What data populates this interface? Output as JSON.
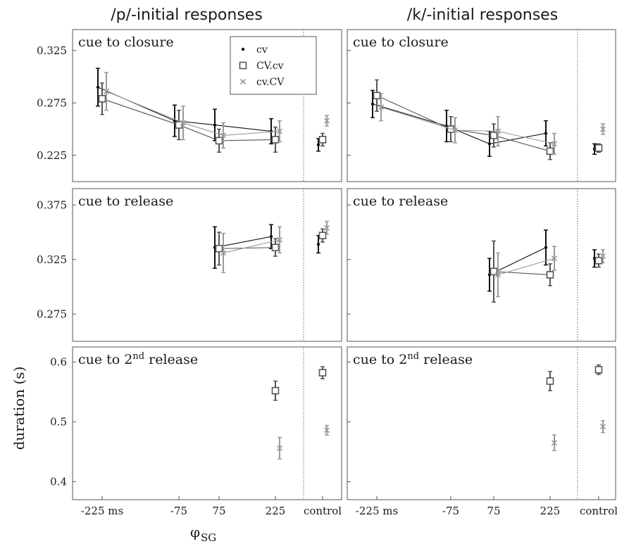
{
  "chart_data": {
    "type": "line",
    "ylabel": "duration (s)",
    "xlabel": "φ",
    "xlabel_sub": "SG",
    "x_categories": [
      "-225 ms",
      "-75",
      "75",
      "225",
      "control"
    ],
    "control_tick_labels": [
      "control",
      "control"
    ],
    "columns": [
      "/p/-initial responses",
      "/k/-initial responses"
    ],
    "legend": {
      "placement": "top-center of top-left panel",
      "entries": [
        {
          "name": "cv",
          "marker": "dot",
          "color": "#111111"
        },
        {
          "name": "CV.cv",
          "marker": "square",
          "color": "#555555"
        },
        {
          "name": "cv.CV",
          "marker": "x",
          "color": "#9a9a9a"
        }
      ]
    },
    "rows": [
      {
        "label": "cue to closure",
        "ylim": [
          0.2,
          0.345
        ],
        "yticks": [
          "0.225",
          "0.275",
          "0.325"
        ],
        "ytick_values": [
          0.225,
          0.275,
          0.325
        ],
        "panels": [
          {
            "series": [
              {
                "name": "cv",
                "x": [
                  0,
                  1,
                  2,
                  3,
                  4
                ],
                "y": [
                  0.29,
                  0.258,
                  0.254,
                  0.248,
                  0.235
                ],
                "err": [
                  0.018,
                  0.015,
                  0.015,
                  0.012,
                  0.006
                ]
              },
              {
                "name": "CV.cv",
                "x": [
                  0,
                  1,
                  2,
                  3,
                  4
                ],
                "y": [
                  0.279,
                  0.254,
                  0.239,
                  0.24,
                  0.24
                ],
                "err": [
                  0.015,
                  0.014,
                  0.011,
                  0.012,
                  0.006
                ]
              },
              {
                "name": "cv.CV",
                "x": [
                  0,
                  1,
                  2,
                  3,
                  4
                ],
                "y": [
                  0.286,
                  0.256,
                  0.244,
                  0.248,
                  0.258
                ],
                "err": [
                  0.018,
                  0.016,
                  0.012,
                  0.01,
                  0.005
                ]
              }
            ]
          },
          {
            "series": [
              {
                "name": "cv",
                "x": [
                  0,
                  1,
                  2,
                  3,
                  4
                ],
                "y": [
                  0.274,
                  0.253,
                  0.236,
                  0.246,
                  0.231
                ],
                "err": [
                  0.013,
                  0.015,
                  0.012,
                  0.012,
                  0.005
                ]
              },
              {
                "name": "CV.cv",
                "x": [
                  0,
                  1,
                  2,
                  3,
                  4
                ],
                "y": [
                  0.282,
                  0.25,
                  0.244,
                  0.229,
                  0.232
                ],
                "err": [
                  0.015,
                  0.012,
                  0.011,
                  0.008,
                  0.004
                ]
              },
              {
                "name": "cv.CV",
                "x": [
                  0,
                  1,
                  2,
                  3,
                  4
                ],
                "y": [
                  0.271,
                  0.249,
                  0.248,
                  0.236,
                  0.25
                ],
                "err": [
                  0.013,
                  0.012,
                  0.014,
                  0.01,
                  0.005
                ]
              }
            ]
          }
        ]
      },
      {
        "label": "cue to release",
        "ylim": [
          0.25,
          0.39
        ],
        "yticks": [
          "0.275",
          "0.325",
          "0.375"
        ],
        "ytick_values": [
          0.275,
          0.325,
          0.375
        ],
        "panels": [
          {
            "series": [
              {
                "name": "cv",
                "x": [
                  2,
                  3,
                  4
                ],
                "y": [
                  0.336,
                  0.346,
                  0.339
                ],
                "err": [
                  0.019,
                  0.011,
                  0.008
                ]
              },
              {
                "name": "CV.cv",
                "x": [
                  2,
                  3,
                  4
                ],
                "y": [
                  0.335,
                  0.336,
                  0.347
                ],
                "err": [
                  0.015,
                  0.008,
                  0.006
                ]
              },
              {
                "name": "cv.CV",
                "x": [
                  2,
                  3,
                  4
                ],
                "y": [
                  0.331,
                  0.343,
                  0.354
                ],
                "err": [
                  0.018,
                  0.012,
                  0.006
                ]
              }
            ]
          },
          {
            "series": [
              {
                "name": "cv",
                "x": [
                  2,
                  3,
                  4
                ],
                "y": [
                  0.311,
                  0.336,
                  0.326
                ],
                "err": [
                  0.015,
                  0.016,
                  0.008
                ]
              },
              {
                "name": "CV.cv",
                "x": [
                  2,
                  3,
                  4
                ],
                "y": [
                  0.314,
                  0.311,
                  0.324
                ],
                "err": [
                  0.028,
                  0.01,
                  0.006
                ]
              },
              {
                "name": "cv.CV",
                "x": [
                  2,
                  3,
                  4
                ],
                "y": [
                  0.311,
                  0.326,
                  0.328
                ],
                "err": [
                  0.02,
                  0.011,
                  0.006
                ]
              }
            ]
          }
        ]
      },
      {
        "label": "cue to 2nd release",
        "label_main": "cue to 2",
        "label_sup": "nd",
        "label_tail": " release",
        "ylim": [
          0.37,
          0.625
        ],
        "yticks": [
          "0.4",
          "0.5",
          "0.6"
        ],
        "ytick_values": [
          0.4,
          0.5,
          0.6
        ],
        "panels": [
          {
            "series": [
              {
                "name": "CV.cv",
                "x": [
                  3,
                  4
                ],
                "y": [
                  0.552,
                  0.582
                ],
                "err": [
                  0.016,
                  0.01
                ]
              },
              {
                "name": "cv.CV",
                "x": [
                  3,
                  4
                ],
                "y": [
                  0.456,
                  0.486
                ],
                "err": [
                  0.018,
                  0.008
                ]
              }
            ]
          },
          {
            "series": [
              {
                "name": "CV.cv",
                "x": [
                  3,
                  4
                ],
                "y": [
                  0.568,
                  0.587
                ],
                "err": [
                  0.016,
                  0.008
                ]
              },
              {
                "name": "cv.CV",
                "x": [
                  3,
                  4
                ],
                "y": [
                  0.465,
                  0.492
                ],
                "err": [
                  0.013,
                  0.01
                ]
              }
            ]
          }
        ]
      }
    ]
  }
}
